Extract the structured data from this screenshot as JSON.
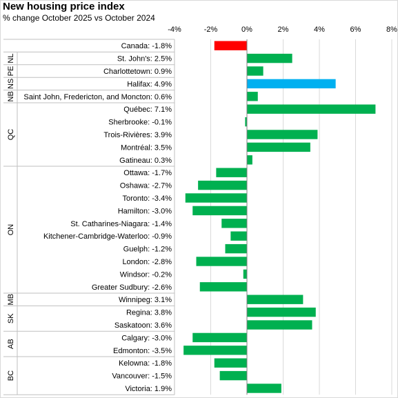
{
  "title": "New housing price index",
  "subtitle": "% change October 2025 vs October 2024",
  "colors": {
    "canada": "#ff0000",
    "highlight": "#00b0f0",
    "default": "#00b050",
    "grid": "#d9d9d9",
    "separator": "#bfbfbf",
    "zero_line": "#7f7f7f"
  },
  "chart_data": {
    "type": "bar",
    "orientation": "horizontal",
    "x_axis": {
      "ticks": [
        "-4%",
        "-2%",
        "0%",
        "2%",
        "4%",
        "6%",
        "8%"
      ],
      "xlim": [
        -4,
        8
      ]
    },
    "grid": true,
    "categories": [
      {
        "province": "",
        "label": "Canada: -1.8%",
        "value": -1.8,
        "color": "canada"
      },
      {
        "province": "NL",
        "label": "St. John's: 2.5%",
        "value": 2.5,
        "color": "default"
      },
      {
        "province": "PE",
        "label": "Charlottetown: 0.9%",
        "value": 0.9,
        "color": "default"
      },
      {
        "province": "NS",
        "label": "Halifax: 4.9%",
        "value": 4.9,
        "color": "highlight"
      },
      {
        "province": "NB",
        "label": "Saint John, Fredericton, and Moncton: 0.6%",
        "value": 0.6,
        "color": "default"
      },
      {
        "province": "QC",
        "label": "Québec: 7.1%",
        "value": 7.1,
        "color": "default"
      },
      {
        "province": "QC",
        "label": "Sherbrooke: -0.1%",
        "value": -0.1,
        "color": "default"
      },
      {
        "province": "QC",
        "label": "Trois-Rivières: 3.9%",
        "value": 3.9,
        "color": "default"
      },
      {
        "province": "QC",
        "label": "Montréal: 3.5%",
        "value": 3.5,
        "color": "default"
      },
      {
        "province": "QC",
        "label": "Gatineau: 0.3%",
        "value": 0.3,
        "color": "default"
      },
      {
        "province": "ON",
        "label": "Ottawa: -1.7%",
        "value": -1.7,
        "color": "default"
      },
      {
        "province": "ON",
        "label": "Oshawa: -2.7%",
        "value": -2.7,
        "color": "default"
      },
      {
        "province": "ON",
        "label": "Toronto: -3.4%",
        "value": -3.4,
        "color": "default"
      },
      {
        "province": "ON",
        "label": "Hamilton: -3.0%",
        "value": -3.0,
        "color": "default"
      },
      {
        "province": "ON",
        "label": "St. Catharines-Niagara: -1.4%",
        "value": -1.4,
        "color": "default"
      },
      {
        "province": "ON",
        "label": "Kitchener-Cambridge-Waterloo: -0.9%",
        "value": -0.9,
        "color": "default"
      },
      {
        "province": "ON",
        "label": "Guelph: -1.2%",
        "value": -1.2,
        "color": "default"
      },
      {
        "province": "ON",
        "label": "London: -2.8%",
        "value": -2.8,
        "color": "default"
      },
      {
        "province": "ON",
        "label": "Windsor: -0.2%",
        "value": -0.2,
        "color": "default"
      },
      {
        "province": "ON",
        "label": "Greater Sudbury: -2.6%",
        "value": -2.6,
        "color": "default"
      },
      {
        "province": "MB",
        "label": "Winnipeg: 3.1%",
        "value": 3.1,
        "color": "default"
      },
      {
        "province": "SK",
        "label": "Regina: 3.8%",
        "value": 3.8,
        "color": "default"
      },
      {
        "province": "SK",
        "label": "Saskatoon: 3.6%",
        "value": 3.6,
        "color": "default"
      },
      {
        "province": "AB",
        "label": "Calgary: -3.0%",
        "value": -3.0,
        "color": "default"
      },
      {
        "province": "AB",
        "label": "Edmonton: -3.5%",
        "value": -3.5,
        "color": "default"
      },
      {
        "province": "BC",
        "label": "Kelowna: -1.8%",
        "value": -1.8,
        "color": "default"
      },
      {
        "province": "BC",
        "label": "Vancouver: -1.5%",
        "value": -1.5,
        "color": "default"
      },
      {
        "province": "BC",
        "label": "Victoria: 1.9%",
        "value": 1.9,
        "color": "default"
      }
    ]
  }
}
